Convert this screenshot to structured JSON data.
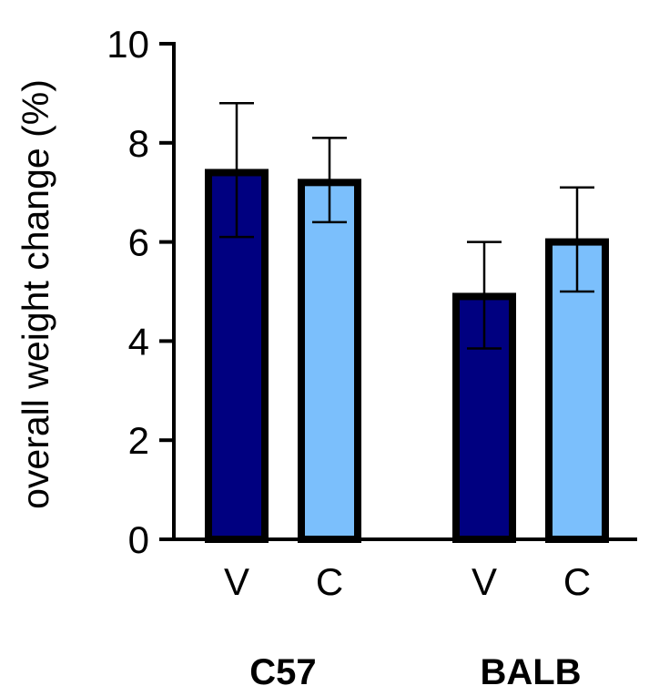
{
  "chart_data": {
    "type": "bar",
    "ylabel": "overall weight change (%)",
    "ylim": [
      0,
      10
    ],
    "yticks": [
      "0",
      "2",
      "4",
      "6",
      "8",
      "10"
    ],
    "grid": false,
    "legend": "none",
    "groups": [
      {
        "name": "C57",
        "bars": [
          {
            "label": "V",
            "value": 7.4,
            "error_low": 6.1,
            "error_high": 8.8,
            "color": "#000080"
          },
          {
            "label": "C",
            "value": 7.2,
            "error_low": 6.4,
            "error_high": 8.1,
            "color": "#7BBFFC"
          }
        ]
      },
      {
        "name": "BALB",
        "bars": [
          {
            "label": "V",
            "value": 4.9,
            "error_low": 3.85,
            "error_high": 6.0,
            "color": "#000080"
          },
          {
            "label": "C",
            "value": 6.0,
            "error_low": 5.0,
            "error_high": 7.1,
            "color": "#7BBFFC"
          }
        ]
      }
    ]
  }
}
